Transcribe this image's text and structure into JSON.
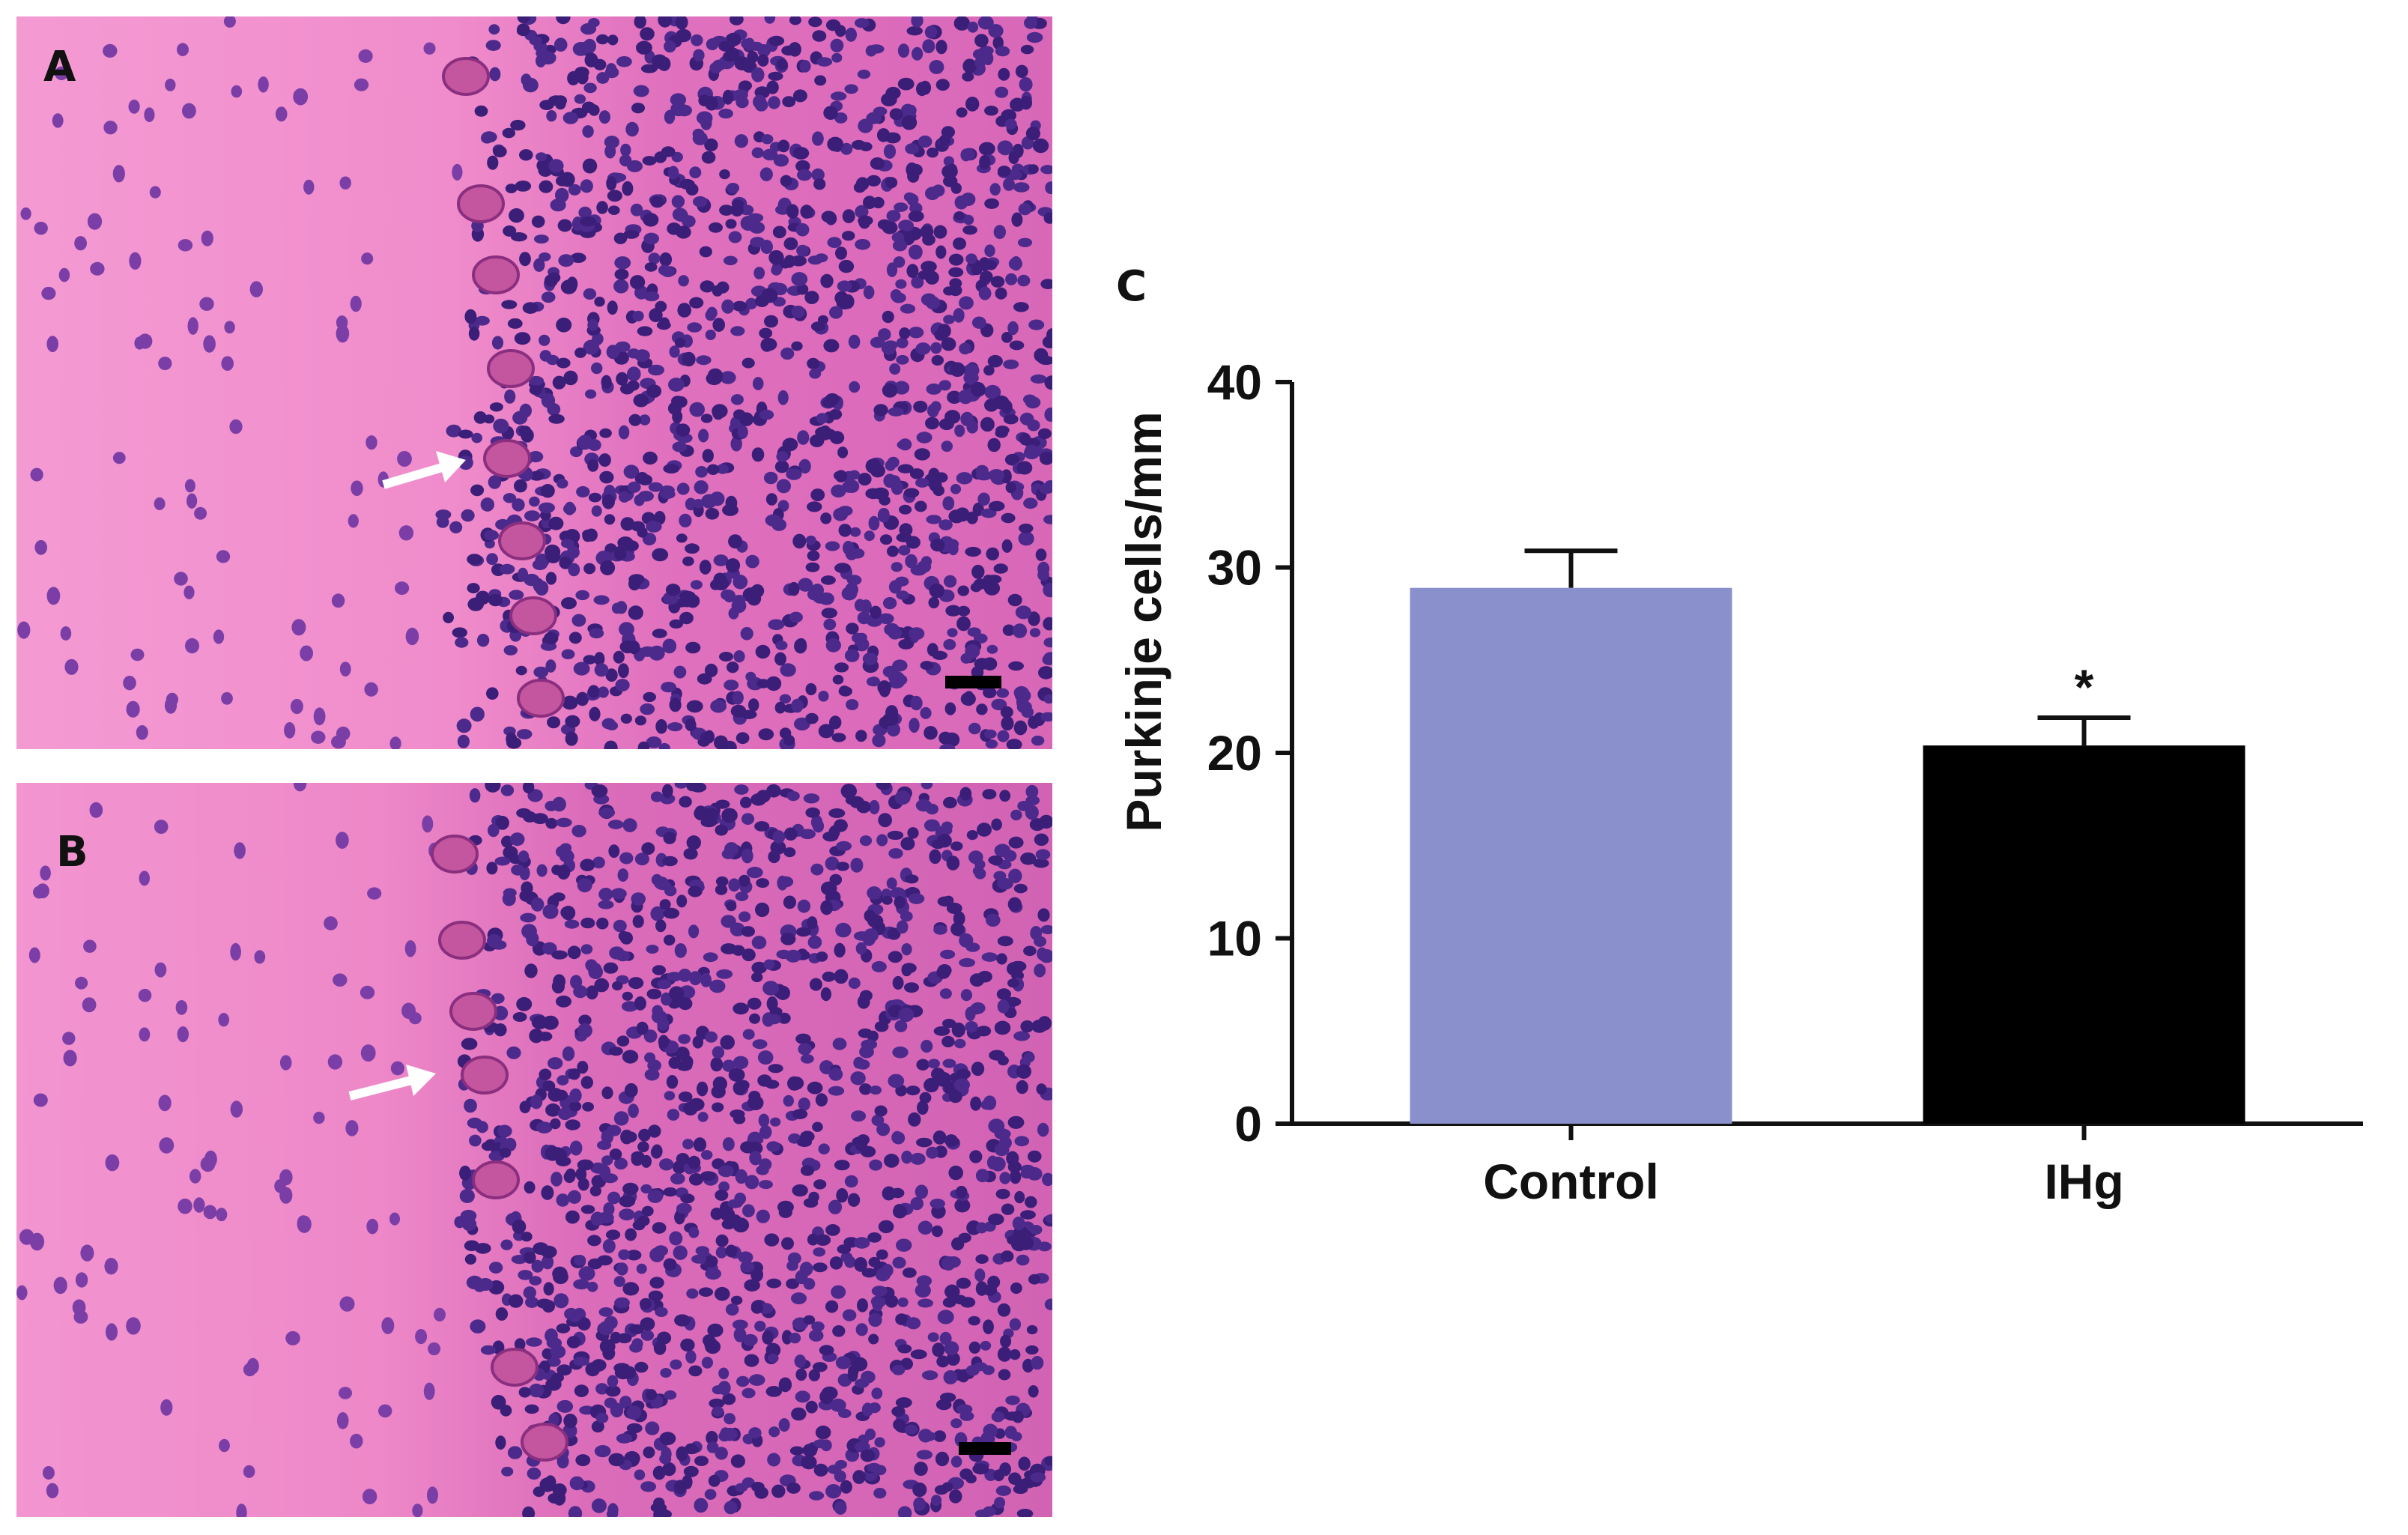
{
  "panels": {
    "a": {
      "letter": "A"
    },
    "b": {
      "letter": "B"
    },
    "c": {
      "letter": "C"
    }
  },
  "colors": {
    "tissue": "#ee7fc4",
    "nuclei": "#3b1f7a",
    "control_bar": "#8a90cc",
    "ihg_bar": "#000000",
    "arrow": "#ffffff",
    "scale_bar": "#000000"
  },
  "chart_data": {
    "type": "bar",
    "categories": [
      "Control",
      "IHg"
    ],
    "values": [
      28.9,
      20.4
    ],
    "errors": [
      2.0,
      1.5
    ],
    "bar_colors": [
      "#8a90cc",
      "#000000"
    ],
    "annotations": [
      "",
      "*"
    ],
    "ylabel": "Purkinje cells/mm",
    "xlabel": "",
    "ylim": [
      0,
      40
    ],
    "yticks": [
      0,
      10,
      20,
      30,
      40
    ],
    "ytick_labels": [
      "0",
      "10",
      "20",
      "30",
      "40"
    ],
    "grid": false,
    "legend": "none"
  }
}
